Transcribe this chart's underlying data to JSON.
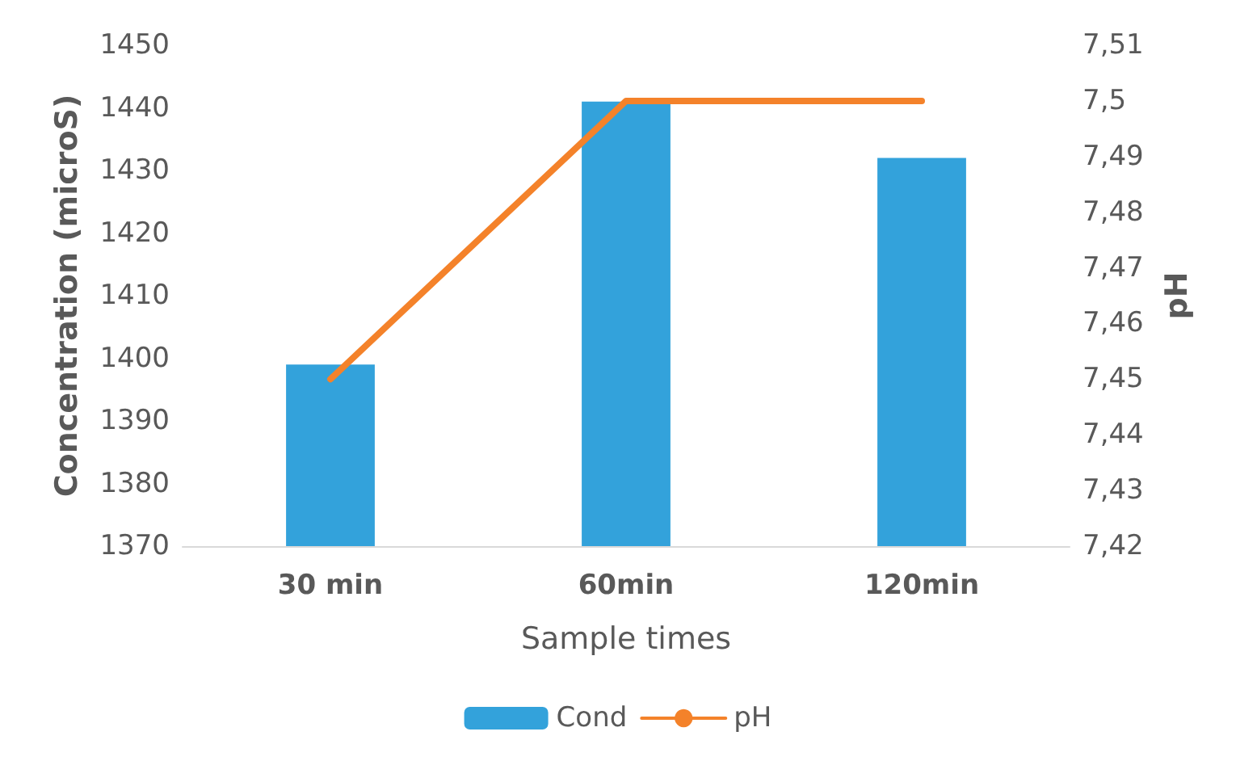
{
  "chart_data": {
    "type": "bar",
    "xlabel": "Sample times",
    "ylabel": "Concentration (microS)",
    "y2label": "pH",
    "categories": [
      "30 min",
      "60min",
      "120min"
    ],
    "series": [
      {
        "name": "Cond",
        "color": "#33a2db",
        "values": [
          1399,
          1441,
          1432
        ]
      },
      {
        "name": "pH",
        "type": "line",
        "axis": "y2",
        "color": "#f4822a",
        "values": [
          7.45,
          7.5,
          7.5
        ]
      }
    ],
    "ylim": [
      1370,
      1450
    ],
    "yticks": [
      1370,
      1380,
      1390,
      1400,
      1410,
      1420,
      1430,
      1440,
      1450
    ],
    "y2lim": [
      7.42,
      7.51
    ],
    "y2ticks": [
      {
        "value": 7.42,
        "label": "7,42"
      },
      {
        "value": 7.43,
        "label": "7,43"
      },
      {
        "value": 7.44,
        "label": "7,44"
      },
      {
        "value": 7.45,
        "label": "7,45"
      },
      {
        "value": 7.46,
        "label": "7,46"
      },
      {
        "value": 7.47,
        "label": "7,47"
      },
      {
        "value": 7.48,
        "label": "7,48"
      },
      {
        "value": 7.49,
        "label": "7,49"
      },
      {
        "value": 7.5,
        "label": "7,5"
      },
      {
        "value": 7.51,
        "label": "7,51"
      }
    ],
    "grid": false,
    "legend": "bottom",
    "marker": "none"
  }
}
